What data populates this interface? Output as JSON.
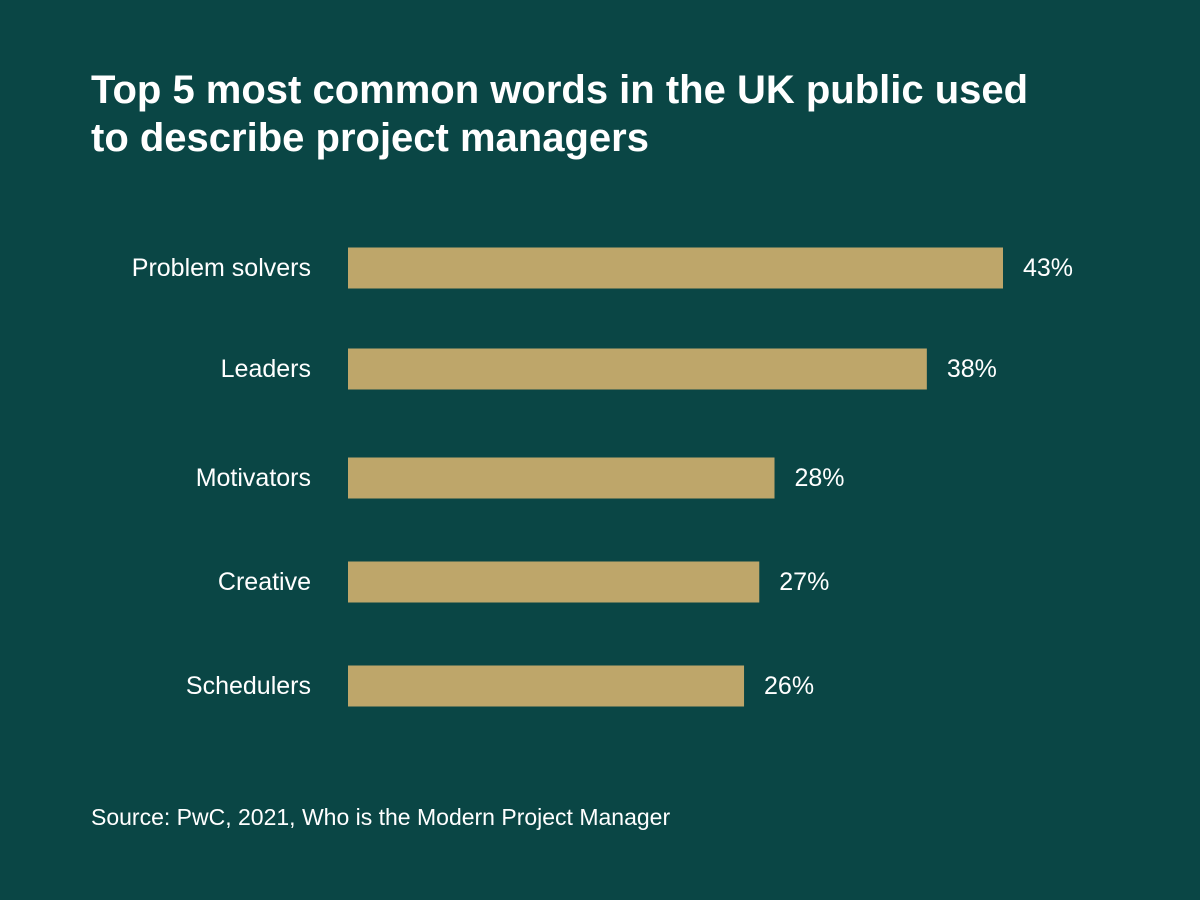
{
  "colors": {
    "background": "#0a4645",
    "bar": "#bea66a",
    "text": "#ffffff"
  },
  "title": "Top 5 most common words in the UK public used to describe project managers",
  "source": "Source: PwC, 2021, Who is the Modern Project Manager",
  "chart_data": {
    "type": "bar",
    "orientation": "horizontal",
    "title": "Top 5 most common words in the UK public used to describe project managers",
    "categories": [
      "Problem solvers",
      "Leaders",
      "Motivators",
      "Creative",
      "Schedulers"
    ],
    "values": [
      43,
      38,
      28,
      27,
      26
    ],
    "value_labels": [
      "43%",
      "38%",
      "28%",
      "27%",
      "26%"
    ],
    "unit": "%",
    "xlim": [
      0,
      43
    ],
    "grid": false,
    "legend": "none"
  }
}
